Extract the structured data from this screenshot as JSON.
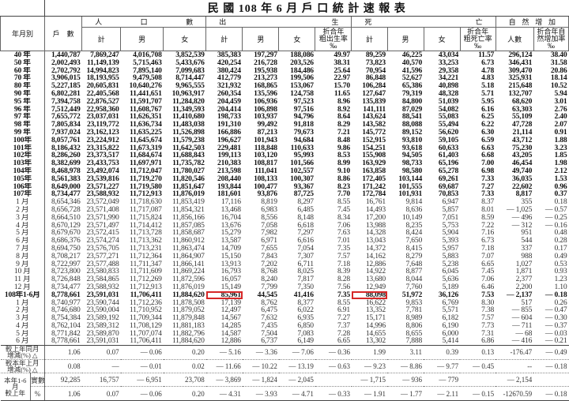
{
  "title": "民 國 108 年 6 月 戶 口 統 計 速 報 表",
  "headers": {
    "period": "年月別",
    "households": "戶　數",
    "population": "人口數",
    "births": "出生",
    "deaths": "死亡",
    "natural_increase": "自然增加",
    "sub": [
      "計",
      "男",
      "女",
      "計",
      "男",
      "女",
      "折合年\n粗出生率\n‰",
      "計",
      "男",
      "女",
      "折合年\n粗死亡率\n‰",
      "人數",
      "折合年自\n然增加率\n‰"
    ]
  },
  "highlight_color": "#d62828",
  "highlight_cells": [
    {
      "row": "108年1-6月",
      "column": "births-total"
    },
    {
      "row": "108年1-6月",
      "column": "deaths-total"
    }
  ],
  "rows": [
    {
      "type": "year",
      "label": "40 年",
      "v": [
        "1,440,787",
        "7,869,247",
        "4,016,708",
        "3,852,539",
        "385,383",
        "197,297",
        "188,086",
        "49.97",
        "89,259",
        "46,225",
        "43,034",
        "11.57",
        "296,124",
        "38.40"
      ]
    },
    {
      "type": "year",
      "label": "50 年",
      "v": [
        "2,002,493",
        "11,149,139",
        "5,715,463",
        "5,433,676",
        "420,254",
        "216,728",
        "203,526",
        "38.31",
        "73,823",
        "40,570",
        "33,253",
        "6.73",
        "346,431",
        "31.58"
      ]
    },
    {
      "type": "year",
      "label": "60 年",
      "v": [
        "2,702,792",
        "14,994,823",
        "7,895,140",
        "7,099,683",
        "380,424",
        "195,938",
        "184,486",
        "25.64",
        "70,954",
        "41,596",
        "29,358",
        "4.78",
        "309,470",
        "20.86"
      ]
    },
    {
      "type": "year",
      "label": "70 年",
      "v": [
        "3,906,015",
        "18,193,955",
        "9,479,508",
        "8,714,447",
        "412,779",
        "213,273",
        "199,506",
        "22.97",
        "86,848",
        "52,627",
        "34,221",
        "4.83",
        "325,931",
        "18.14"
      ]
    },
    {
      "type": "year",
      "label": "80 年",
      "v": [
        "5,227,185",
        "20,605,831",
        "10,640,276",
        "9,965,555",
        "321,932",
        "168,865",
        "153,067",
        "15.70",
        "106,284",
        "65,386",
        "40,898",
        "5.18",
        "215,648",
        "10.52"
      ]
    },
    {
      "type": "year",
      "label": "90 年",
      "v": [
        "6,802,281",
        "22,405,568",
        "11,441,651",
        "10,963,917",
        "260,354",
        "135,596",
        "124,758",
        "11.65",
        "127,647",
        "79,319",
        "48,328",
        "5.71",
        "132,707",
        "5.94"
      ]
    },
    {
      "type": "year",
      "label": "95 年",
      "v": [
        "7,394,758",
        "22,876,527",
        "11,591,707",
        "11,284,820",
        "204,459",
        "106,936",
        "97,523",
        "8.96",
        "135,839",
        "84,800",
        "51,039",
        "5.95",
        "68,620",
        "3.01"
      ]
    },
    {
      "type": "year",
      "label": "96 年",
      "v": [
        "7,512,449",
        "22,958,360",
        "11,608,767",
        "11,349,593",
        "204,414",
        "106,898",
        "97,516",
        "8.92",
        "141,111",
        "87,029",
        "54,082",
        "6.16",
        "63,303",
        "2.76"
      ]
    },
    {
      "type": "year",
      "label": "97 年",
      "v": [
        "7,655,772",
        "23,037,031",
        "11,626,351",
        "11,410,680",
        "198,733",
        "103,937",
        "94,796",
        "8.64",
        "143,624",
        "88,541",
        "55,083",
        "6.25",
        "55,109",
        "2.40"
      ]
    },
    {
      "type": "year",
      "label": "98 年",
      "v": [
        "7,805,834",
        "23,119,772",
        "11,636,734",
        "11,483,038",
        "191,310",
        "99,492",
        "91,818",
        "8.29",
        "143,582",
        "88,088",
        "55,494",
        "6.22",
        "47,728",
        "2.07"
      ]
    },
    {
      "type": "year",
      "label": "99 年",
      "v": [
        "7,937,024",
        "23,162,123",
        "11,635,225",
        "11,526,898",
        "166,886",
        "87,213",
        "79,673",
        "7.21",
        "145,772",
        "89,152",
        "56,620",
        "6.30",
        "21,114",
        "0.91"
      ]
    },
    {
      "type": "year",
      "label": "100年",
      "v": [
        "8,057,761",
        "23,224,912",
        "11,645,674",
        "11,579,238",
        "196,627",
        "101,943",
        "94,684",
        "8.48",
        "152,915",
        "93,810",
        "59,105",
        "6.59",
        "43,712",
        "1.88"
      ]
    },
    {
      "type": "year",
      "label": "101年",
      "v": [
        "8,186,432",
        "23,315,822",
        "11,673,319",
        "11,642,503",
        "229,481",
        "118,848",
        "110,633",
        "9.86",
        "154,251",
        "93,618",
        "60,633",
        "6.63",
        "75,230",
        "3.23"
      ]
    },
    {
      "type": "year",
      "label": "102年",
      "v": [
        "8,286,260",
        "23,373,517",
        "11,684,674",
        "11,688,843",
        "199,113",
        "103,120",
        "95,993",
        "8.53",
        "155,908",
        "94,505",
        "61,403",
        "6.68",
        "43,205",
        "1.85"
      ]
    },
    {
      "type": "year",
      "label": "103年",
      "v": [
        "8,382,699",
        "23,433,753",
        "11,697,971",
        "11,735,782",
        "210,383",
        "108,817",
        "101,566",
        "8.99",
        "163,929",
        "98,733",
        "65,196",
        "7.00",
        "46,454",
        "1.98"
      ]
    },
    {
      "type": "year",
      "label": "104年",
      "v": [
        "8,468,978",
        "23,492,074",
        "11,712,047",
        "11,780,027",
        "213,598",
        "111,041",
        "102,557",
        "9.10",
        "163,858",
        "98,580",
        "65,278",
        "6.98",
        "49,740",
        "2.12"
      ]
    },
    {
      "type": "year",
      "label": "105年",
      "v": [
        "8,561,383",
        "23,539,816",
        "11,719,270",
        "11,820,546",
        "208,440",
        "108,133",
        "100,307",
        "8.86",
        "172,405",
        "103,144",
        "69,261",
        "7.33",
        "36,035",
        "1.53"
      ]
    },
    {
      "type": "year",
      "label": "106年",
      "v": [
        "8,649,000",
        "23,571,227",
        "11,719,580",
        "11,851,647",
        "193,844",
        "100,477",
        "93,367",
        "8.23",
        "171,242",
        "101,555",
        "69,687",
        "7.27",
        "22,602",
        "0.96"
      ]
    },
    {
      "type": "year",
      "label": "107年",
      "v": [
        "8,734,477",
        "23,588,932",
        "11,712,913",
        "11,876,019",
        "181,601",
        "93,876",
        "87,725",
        "7.70",
        "172,784",
        "101,931",
        "70,853",
        "7.33",
        "8,817",
        "0.37"
      ]
    },
    {
      "type": "month",
      "label": "1 月",
      "v": [
        "8,654,346",
        "23,572,049",
        "11,718,630",
        "11,853,419",
        "17,116",
        "8,819",
        "8,297",
        "8.55",
        "16,761",
        "9,814",
        "6,947",
        "8.37",
        "355",
        "0.18"
      ]
    },
    {
      "type": "month",
      "label": "2 月",
      "v": [
        "8,656,728",
        "23,571,408",
        "11,717,087",
        "11,854,321",
        "13,468",
        "6,983",
        "6,485",
        "7.45",
        "14,493",
        "8,636",
        "5,857",
        "8.01",
        "— 1,025",
        "— 0.57"
      ]
    },
    {
      "type": "month",
      "label": "3 月",
      "v": [
        "8,664,510",
        "23,571,990",
        "11,715,824",
        "11,856,166",
        "16,704",
        "8,556",
        "8,148",
        "8.34",
        "17,200",
        "10,149",
        "7,051",
        "8.59",
        "— 496",
        "— 0.25"
      ]
    },
    {
      "type": "month",
      "label": "4 月",
      "v": [
        "8,670,129",
        "23,571,497",
        "11,714,412",
        "11,857,085",
        "13,676",
        "7,058",
        "6,618",
        "7.06",
        "13,988",
        "8,235",
        "5,753",
        "7.22",
        "— 312",
        "— 0.16"
      ]
    },
    {
      "type": "month",
      "label": "5 月",
      "v": [
        "8,679,670",
        "23,572,415",
        "11,713,728",
        "11,858,687",
        "15,279",
        "7,982",
        "7,297",
        "7.63",
        "14,328",
        "8,424",
        "5,904",
        "7.16",
        "951",
        "0.48"
      ]
    },
    {
      "type": "month",
      "label": "6 月",
      "v": [
        "8,686,376",
        "23,574,274",
        "11,713,362",
        "11,860,912",
        "13,587",
        "6,971",
        "6,616",
        "7.01",
        "13,043",
        "7,650",
        "5,393",
        "6.73",
        "544",
        "0.28"
      ]
    },
    {
      "type": "month",
      "label": "7 月",
      "v": [
        "8,694,750",
        "23,576,705",
        "11,713,231",
        "11,863,474",
        "14,709",
        "7,655",
        "7,054",
        "7.35",
        "14,372",
        "8,415",
        "5,957",
        "7.18",
        "337",
        "0.17"
      ]
    },
    {
      "type": "month",
      "label": "8 月",
      "v": [
        "8,708,217",
        "23,577,271",
        "11,712,364",
        "11,864,907",
        "15,150",
        "7,843",
        "7,307",
        "7.57",
        "14,162",
        "8,279",
        "5,883",
        "7.07",
        "988",
        "0.49"
      ]
    },
    {
      "type": "month",
      "label": "9 月",
      "v": [
        "8,722,997",
        "23,577,488",
        "11,711,347",
        "11,866,141",
        "13,913",
        "7,202",
        "6,711",
        "7.18",
        "12,886",
        "7,648",
        "5,238",
        "6.65",
        "1,027",
        "0.53"
      ]
    },
    {
      "type": "month",
      "label": "10 月",
      "v": [
        "8,723,800",
        "23,580,833",
        "11,711,609",
        "11,869,224",
        "16,793",
        "8,768",
        "8,025",
        "8.39",
        "14,922",
        "8,877",
        "6,045",
        "7.45",
        "1,871",
        "0.93"
      ]
    },
    {
      "type": "month",
      "label": "11 月",
      "v": [
        "8,726,848",
        "23,584,865",
        "11,712,269",
        "11,872,596",
        "16,057",
        "8,240",
        "7,817",
        "8.28",
        "13,680",
        "8,044",
        "5,636",
        "7.06",
        "2,377",
        "1.23"
      ]
    },
    {
      "type": "month",
      "label": "12 月",
      "v": [
        "8,734,477",
        "23,588,932",
        "11,712,913",
        "11,876,019",
        "15,149",
        "7,799",
        "7,350",
        "7.56",
        "12,949",
        "7,760",
        "5,189",
        "6.46",
        "2,200",
        "1.10"
      ]
    },
    {
      "type": "period",
      "label": "108年1-6月",
      "v": [
        "8,778,661",
        "23,591,031",
        "11,706,411",
        "11,884,620",
        "85,961",
        "44,545",
        "41,416",
        "7.35",
        "88,098",
        "51,972",
        "36,126",
        "7.53",
        "— 2,137",
        "— 0.18"
      ]
    },
    {
      "type": "month",
      "label": "1 月",
      "v": [
        "8,740,977",
        "23,590,744",
        "11,712,236",
        "11,878,508",
        "17,139",
        "8,762",
        "8,377",
        "8.55",
        "16,622",
        "9,853",
        "6,769",
        "8.30",
        "517",
        "0.26"
      ]
    },
    {
      "type": "month",
      "label": "2 月",
      "v": [
        "8,746,680",
        "23,590,004",
        "11,710,952",
        "11,879,052",
        "12,497",
        "6,475",
        "6,022",
        "6.91",
        "13,352",
        "7,781",
        "5,571",
        "7.38",
        "— 855",
        "— 0.47"
      ]
    },
    {
      "type": "month",
      "label": "3 月",
      "v": [
        "8,754,384",
        "23,589,192",
        "11,709,344",
        "11,879,848",
        "14,567",
        "7,632",
        "6,935",
        "7.27",
        "15,171",
        "8,989",
        "6,182",
        "7.57",
        "— 604",
        "— 0.30"
      ]
    },
    {
      "type": "month",
      "label": "4 月",
      "v": [
        "8,762,104",
        "23,589,312",
        "11,708,129",
        "11,881,183",
        "14,285",
        "7,435",
        "6,850",
        "7.37",
        "14,996",
        "8,806",
        "6,190",
        "7.73",
        "— 711",
        "— 0.37"
      ]
    },
    {
      "type": "month",
      "label": "5 月",
      "v": [
        "8,771,842",
        "23,589,870",
        "11,707,074",
        "11,882,796",
        "14,587",
        "7,504",
        "7,083",
        "7.28",
        "14,655",
        "8,655",
        "6,000",
        "7.31",
        "— 68",
        "— 0.03"
      ]
    },
    {
      "type": "month",
      "label": "6 月",
      "v": [
        "8,778,661",
        "23,591,031",
        "11,706,411",
        "11,884,620",
        "12,886",
        "6,737",
        "6,149",
        "6.65",
        "13,302",
        "7,888",
        "5,414",
        "6.86",
        "— 416",
        "— 0.21"
      ]
    }
  ],
  "comparisons": [
    {
      "label": "較上年同月\n增減(%) △",
      "v": [
        "1.06",
        "0.07",
        "— 0.06",
        "0.20",
        "— 5.16",
        "— 3.36",
        "— 7.06",
        "— 0.36",
        "1.99",
        "3.11",
        "0.39",
        "0.13",
        "-176.47",
        "— 0.49"
      ]
    },
    {
      "label": "較本年上月\n增減(%) △",
      "v": [
        "0.08",
        "—",
        "— 0.01",
        "0.02",
        "— 11.66",
        "— 10.22",
        "— 13.19",
        "— 0.63",
        "— 9.23",
        "— 8.86",
        "— 9.77",
        "— 0.45",
        "--",
        "— 0.18"
      ]
    }
  ],
  "ytd": {
    "label": "本年1-6\n月\n較上年",
    "rows": [
      {
        "sub": "實數",
        "v": [
          "92,285",
          "16,757",
          "— 6,951",
          "23,708",
          "— 3,869",
          "— 1,824",
          "— 2,045",
          "",
          "— 1,715",
          "— 936",
          "— 779",
          "",
          "— 2,154",
          ""
        ]
      },
      {
        "sub": "%",
        "v": [
          "1.06",
          "0.07",
          "— 0.06",
          "0.20",
          "— 4.31",
          "— 3.93",
          "— 4.71",
          "— 0.33",
          "— 1.91",
          "— 1.77",
          "— 2.11",
          "— 0.15",
          "-12670.59",
          "— 0.18"
        ]
      }
    ]
  }
}
